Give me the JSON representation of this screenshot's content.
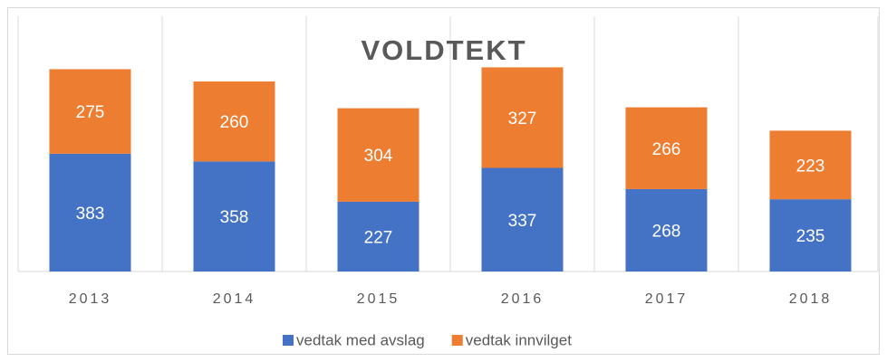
{
  "chart_data": {
    "type": "stacked_bar",
    "title": "VOLDTEKT",
    "categories": [
      "2013",
      "2014",
      "2015",
      "2016",
      "2017",
      "2018"
    ],
    "series": [
      {
        "name": "vedtak med avslag",
        "color": "#4472c4",
        "values": [
          383,
          358,
          227,
          337,
          268,
          235
        ]
      },
      {
        "name": "vedtak innvilget",
        "color": "#ed7d31",
        "values": [
          275,
          260,
          304,
          327,
          266,
          223
        ]
      }
    ],
    "ylim": [
      0,
      830
    ],
    "legend": "bottom"
  }
}
